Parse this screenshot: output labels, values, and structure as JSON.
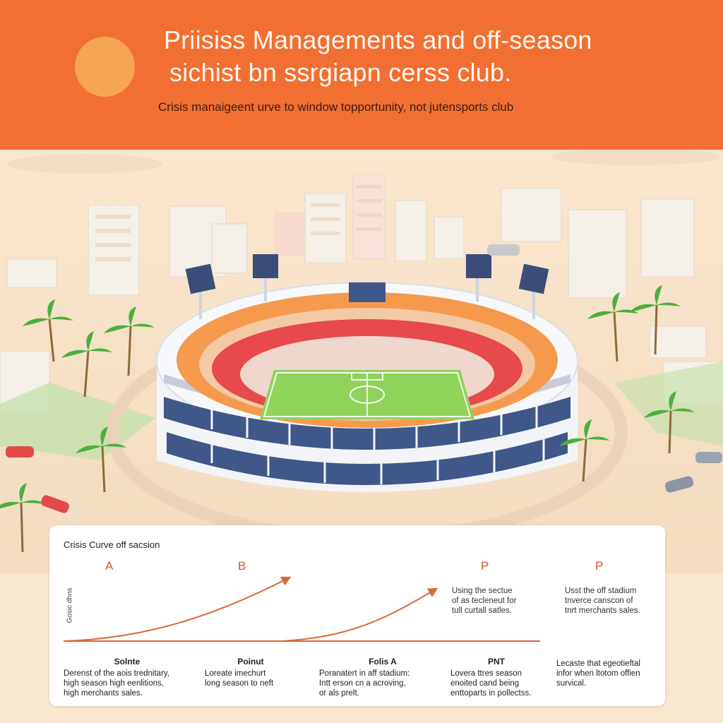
{
  "header": {
    "title_line1": "Priisiss Managements and off-season",
    "title_line2": "sichist bn ssrgiapn cerss club.",
    "subtitle": "Crisis manaigeent urve to window topportunity, not jutensports club"
  },
  "colors": {
    "accent": "#f26f33",
    "sun": "#f6a552",
    "curve": "#d9693a",
    "pitch": "#8fd35a",
    "seats_red": "#e8494b",
    "seats_orange": "#f59a4d"
  },
  "card": {
    "title": "Crisis Curve off sacsion",
    "y_axis_label": "Gosic dhns",
    "markers": [
      "A",
      "B",
      "P",
      "P"
    ],
    "notes": [
      {
        "lines": [
          "Using the sectue",
          "of as tecleneut for",
          "tull curtall satles."
        ]
      },
      {
        "lines": [
          "Usst the off stadium",
          "tnverce canscon of",
          "tnrt merchants sales."
        ]
      }
    ],
    "columns": [
      {
        "heading": "Solnte",
        "lines": [
          "Derenst of the aois trednitary,",
          "high season high eenlitions,",
          "high merchants sales."
        ]
      },
      {
        "heading": "Poinut",
        "lines": [
          "Loreate imechurt",
          "long season to neft"
        ]
      },
      {
        "heading": "Folis A",
        "lines": [
          "Poranatert in aff stadium:",
          "Intt erson cn a acroving,",
          "or als prelt."
        ]
      },
      {
        "heading": "PNT",
        "lines": [
          "Lovera ttres season",
          "enoited cand being",
          "enttoparts in pollectss."
        ]
      },
      {
        "heading": "",
        "lines": [
          "Lecaste that egeotieftal",
          "infor when ltotom offien",
          "survical."
        ]
      }
    ]
  }
}
